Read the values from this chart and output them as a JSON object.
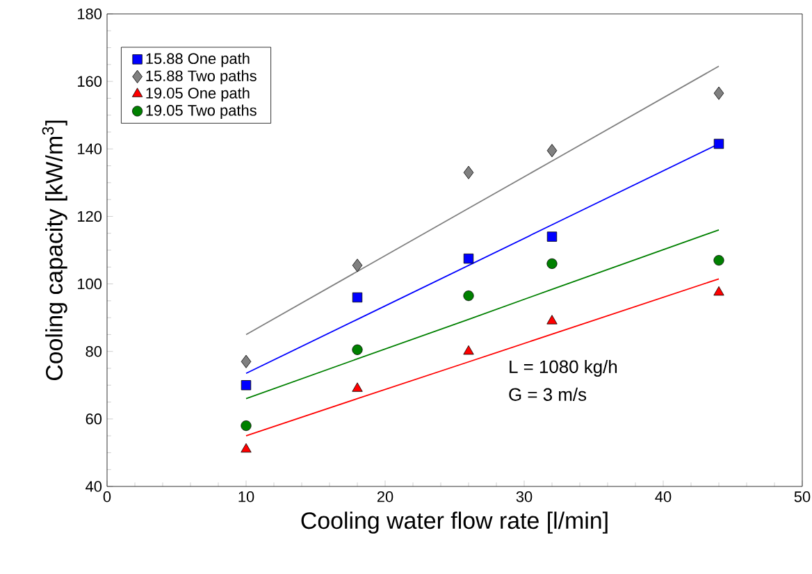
{
  "chart_data": {
    "type": "scatter",
    "xlabel": "Cooling water flow rate [l/min]",
    "ylabel": "Cooling capacity [kW/m$^{3}$]",
    "xlim": [
      0,
      50
    ],
    "ylim": [
      40,
      180
    ],
    "xticks": [
      0,
      10,
      20,
      30,
      40,
      50
    ],
    "yticks": [
      40,
      60,
      80,
      100,
      120,
      140,
      160,
      180
    ],
    "grid": false,
    "legend": "top left",
    "x": [
      10,
      18,
      26,
      32,
      44
    ],
    "series": [
      {
        "name": "15.88 One path",
        "color": "#0000ff",
        "marker": "square",
        "values": [
          70,
          96,
          107.5,
          114,
          141.5
        ]
      },
      {
        "name": "15.88 Two paths",
        "color": "#808080",
        "marker": "diamond",
        "values": [
          77,
          105.5,
          133,
          139.5,
          156.5
        ]
      },
      {
        "name": "19.05 One path",
        "color": "#ff0000",
        "marker": "triangle",
        "values": [
          51,
          69,
          80,
          89,
          97.5
        ]
      },
      {
        "name": "19.05 Two paths",
        "color": "#008000",
        "marker": "circle",
        "values": [
          58,
          80.5,
          96.5,
          106,
          107
        ]
      },
      {
        "type": "line",
        "color": "#808080",
        "marker": "none",
        "values": [
          85,
          103.7,
          122.4,
          136.4,
          164.5
        ]
      },
      {
        "type": "line",
        "color": "#0000ff",
        "marker": "none",
        "values": [
          73.5,
          89.5,
          105.5,
          117.5,
          141.5
        ]
      },
      {
        "type": "line",
        "color": "#ff0000",
        "marker": "none",
        "values": [
          55,
          66,
          76.9,
          85.1,
          101.5
        ]
      },
      {
        "type": "line",
        "color": "#008000",
        "marker": "none",
        "values": [
          66,
          77.8,
          89.5,
          98.4,
          116
        ]
      }
    ],
    "annotations": [
      "L  =   1080  kg/h",
      "G  =   3  m/s"
    ]
  }
}
